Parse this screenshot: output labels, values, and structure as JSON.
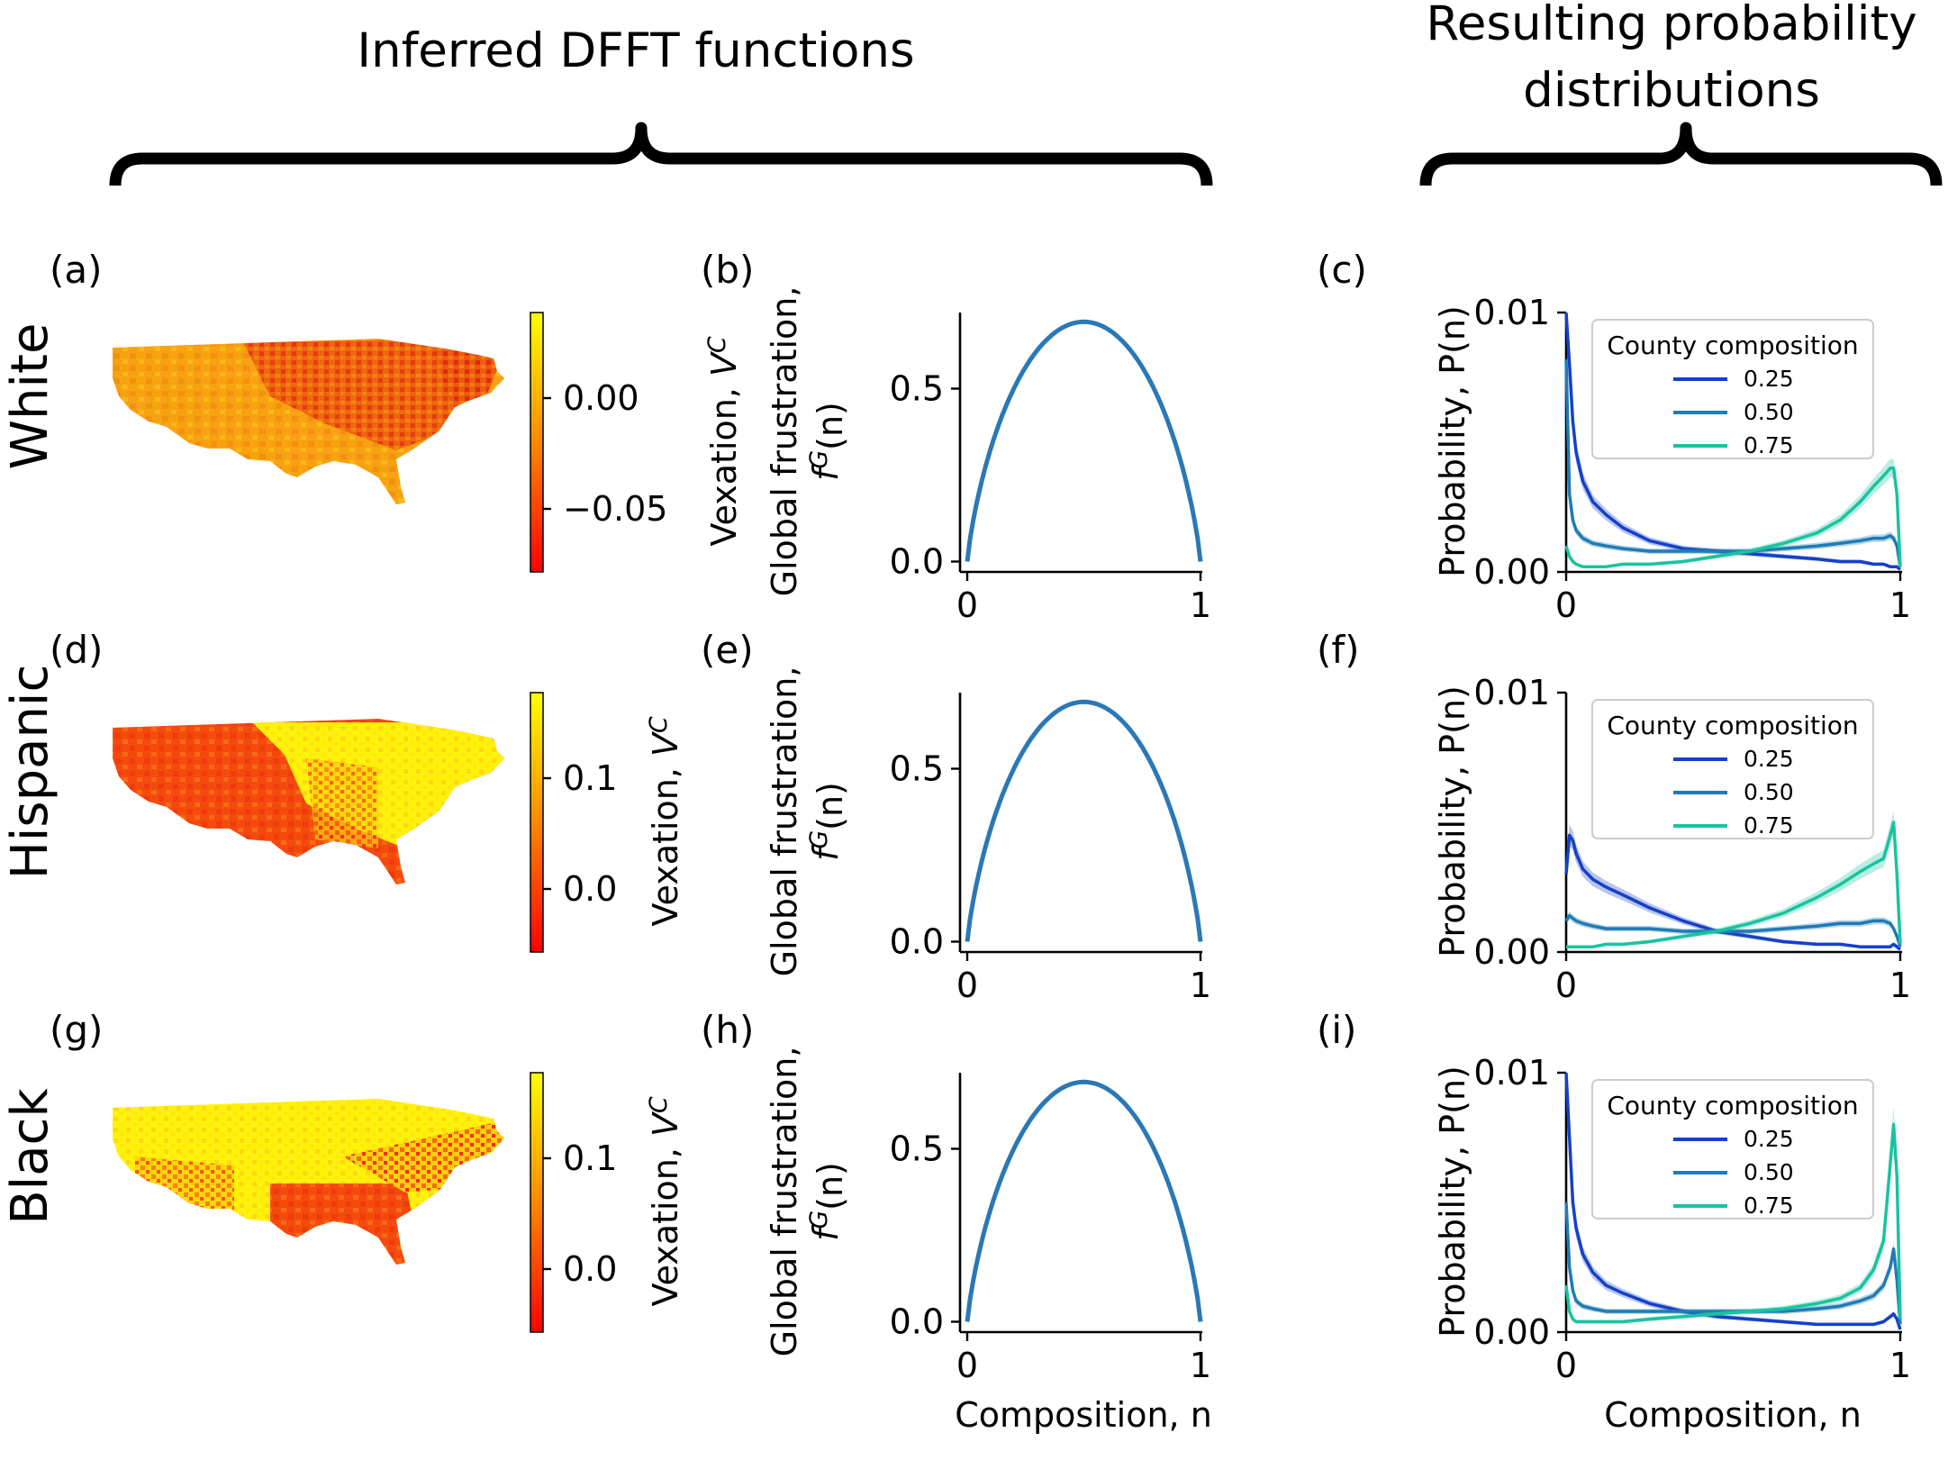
{
  "headers": {
    "left": "Inferred DFFT functions",
    "right_line1": "Resulting probability",
    "right_line2": "distributions"
  },
  "map_colormap": {
    "low": "#ff0000",
    "mid": "#ff8800",
    "high": "#ffff00"
  },
  "series_colors": {
    "0.25": "#1540c8",
    "0.50": "#1f7bb5",
    "0.75": "#19c3a0"
  },
  "curve_color": "#2a78b6",
  "rows": [
    {
      "group": "White",
      "map_label": "(a)",
      "curve_label": "(b)",
      "prob_label": "(c)",
      "colorbar": {
        "ticks": [
          "0.00",
          "−0.05"
        ],
        "label": ""
      },
      "map_tone": "white",
      "curve": {
        "ylabel_line1": "Global frustration,",
        "ylabel_line2": "f^G(n)",
        "yticks": [
          "0.0",
          "0.5"
        ],
        "xticks": [
          "0",
          "1"
        ],
        "xlabel": ""
      },
      "prob": {
        "ylabel": "Probability, P(n)",
        "yticks": [
          "0.00",
          "0.01"
        ],
        "xticks": [
          "0",
          "1"
        ],
        "xlabel": "",
        "legend_title": "County composition"
      },
      "left_axis_label": "Vexation, V^C"
    },
    {
      "group": "Hispanic",
      "map_label": "(d)",
      "curve_label": "(e)",
      "prob_label": "(f)",
      "colorbar": {
        "ticks": [
          "0.1",
          "0.0"
        ],
        "label": "Vexation, V^C"
      },
      "map_tone": "hispanic",
      "curve": {
        "ylabel_line1": "Global frustration,",
        "ylabel_line2": "f^G(n)",
        "yticks": [
          "0.0",
          "0.5"
        ],
        "xticks": [
          "0",
          "1"
        ],
        "xlabel": ""
      },
      "prob": {
        "ylabel": "Probability, P(n)",
        "yticks": [
          "0.00",
          "0.01"
        ],
        "xticks": [
          "0",
          "1"
        ],
        "xlabel": "",
        "legend_title": "County composition"
      },
      "left_axis_label": ""
    },
    {
      "group": "Black",
      "map_label": "(g)",
      "curve_label": "(h)",
      "prob_label": "(i)",
      "colorbar": {
        "ticks": [
          "0.1",
          "0.0"
        ],
        "label": "Vexation, V^C"
      },
      "map_tone": "black",
      "curve": {
        "ylabel_line1": "Global frustration,",
        "ylabel_line2": "f^G(n)",
        "yticks": [
          "0.0",
          "0.5"
        ],
        "xticks": [
          "0",
          "1"
        ],
        "xlabel": "Composition, n"
      },
      "prob": {
        "ylabel": "Probability, P(n)",
        "yticks": [
          "0.00",
          "0.01"
        ],
        "xticks": [
          "0",
          "1"
        ],
        "xlabel": "Composition, n",
        "legend_title": "County composition"
      },
      "left_axis_label": ""
    }
  ],
  "chart_data": [
    {
      "type": "line",
      "panels": [
        "(b)",
        "(e)",
        "(h)"
      ],
      "title": "",
      "xlabel": "Composition, n",
      "ylabel": "Global frustration, f^G(n)",
      "xlim": [
        0,
        1
      ],
      "ylim": [
        -0.03,
        0.72
      ],
      "series": [
        {
          "x": [
            0,
            0.05,
            0.1,
            0.15,
            0.2,
            0.25,
            0.3,
            0.35,
            0.4,
            0.45,
            0.5,
            0.55,
            0.6,
            0.65,
            0.7,
            0.75,
            0.8,
            0.85,
            0.9,
            0.95,
            1
          ],
          "values": [
            0,
            0.199,
            0.325,
            0.423,
            0.5,
            0.562,
            0.611,
            0.647,
            0.673,
            0.688,
            0.693,
            0.688,
            0.673,
            0.647,
            0.611,
            0.562,
            0.5,
            0.423,
            0.325,
            0.199,
            0
          ]
        }
      ]
    },
    {
      "type": "line",
      "panel": "(c)",
      "xlabel": "",
      "ylabel": "Probability, P(n)",
      "xlim": [
        0,
        1
      ],
      "ylim": [
        0,
        0.01
      ],
      "legend": "upper right",
      "legend_title": "County composition",
      "x": [
        0,
        0.01,
        0.02,
        0.03,
        0.05,
        0.08,
        0.12,
        0.17,
        0.25,
        0.35,
        0.45,
        0.55,
        0.65,
        0.75,
        0.82,
        0.88,
        0.92,
        0.95,
        0.97,
        0.98,
        0.99,
        1
      ],
      "series": [
        {
          "name": "0.25",
          "values": [
            0.01,
            0.008,
            0.0058,
            0.0046,
            0.0035,
            0.0027,
            0.0022,
            0.0017,
            0.0012,
            0.0009,
            0.0008,
            0.0007,
            0.0006,
            0.0005,
            0.0004,
            0.0004,
            0.0003,
            0.0003,
            0.0002,
            0.0002,
            0.0002,
            0.0001
          ]
        },
        {
          "name": "0.50",
          "values": [
            0.0082,
            0.003,
            0.002,
            0.0016,
            0.0013,
            0.0011,
            0.001,
            0.0009,
            0.0008,
            0.0008,
            0.0008,
            0.0008,
            0.0009,
            0.001,
            0.0011,
            0.0012,
            0.0013,
            0.0013,
            0.0014,
            0.0013,
            0.001,
            0.0002
          ]
        },
        {
          "name": "0.75",
          "values": [
            0.001,
            0.0006,
            0.0004,
            0.0003,
            0.0002,
            0.0002,
            0.0002,
            0.0003,
            0.0003,
            0.0004,
            0.0006,
            0.0008,
            0.0011,
            0.0015,
            0.002,
            0.0027,
            0.0033,
            0.0037,
            0.004,
            0.004,
            0.003,
            0.0002
          ]
        }
      ]
    },
    {
      "type": "line",
      "panel": "(f)",
      "xlabel": "",
      "ylabel": "Probability, P(n)",
      "xlim": [
        0,
        1
      ],
      "ylim": [
        0,
        0.01
      ],
      "legend": "upper right",
      "legend_title": "County composition",
      "x": [
        0,
        0.01,
        0.02,
        0.03,
        0.05,
        0.08,
        0.12,
        0.17,
        0.25,
        0.35,
        0.45,
        0.55,
        0.65,
        0.75,
        0.82,
        0.88,
        0.92,
        0.95,
        0.97,
        0.98,
        0.99,
        1
      ],
      "series": [
        {
          "name": "0.25",
          "values": [
            0.003,
            0.0045,
            0.0043,
            0.0038,
            0.0032,
            0.0028,
            0.0025,
            0.0022,
            0.0017,
            0.0012,
            0.0008,
            0.0006,
            0.0004,
            0.0003,
            0.0003,
            0.0002,
            0.0002,
            0.0002,
            0.0002,
            0.0003,
            0.0002,
            0.0001
          ]
        },
        {
          "name": "0.50",
          "values": [
            0.0012,
            0.0014,
            0.0013,
            0.0012,
            0.0011,
            0.001,
            0.0009,
            0.0009,
            0.0009,
            0.0008,
            0.0008,
            0.0008,
            0.0009,
            0.001,
            0.0011,
            0.0011,
            0.0012,
            0.0012,
            0.0011,
            0.0009,
            0.0006,
            0.0002
          ]
        },
        {
          "name": "0.75",
          "values": [
            0.0002,
            0.0002,
            0.0002,
            0.0002,
            0.0002,
            0.0002,
            0.0003,
            0.0003,
            0.0004,
            0.0006,
            0.0008,
            0.0011,
            0.0015,
            0.0021,
            0.0026,
            0.0031,
            0.0034,
            0.0036,
            0.0045,
            0.005,
            0.003,
            0.0003
          ]
        }
      ]
    },
    {
      "type": "line",
      "panel": "(i)",
      "xlabel": "Composition, n",
      "ylabel": "Probability, P(n)",
      "xlim": [
        0,
        1
      ],
      "ylim": [
        0,
        0.01
      ],
      "legend": "upper right",
      "legend_title": "County composition",
      "x": [
        0,
        0.01,
        0.02,
        0.03,
        0.05,
        0.08,
        0.12,
        0.17,
        0.25,
        0.35,
        0.45,
        0.55,
        0.65,
        0.75,
        0.82,
        0.88,
        0.92,
        0.95,
        0.97,
        0.98,
        0.99,
        1
      ],
      "series": [
        {
          "name": "0.25",
          "values": [
            0.01,
            0.0075,
            0.005,
            0.004,
            0.003,
            0.0023,
            0.0018,
            0.0015,
            0.0011,
            0.0008,
            0.0006,
            0.0005,
            0.0004,
            0.0003,
            0.0003,
            0.0003,
            0.0003,
            0.0004,
            0.0006,
            0.0007,
            0.0005,
            0.0001
          ]
        },
        {
          "name": "0.50",
          "values": [
            0.005,
            0.0025,
            0.0016,
            0.0012,
            0.001,
            0.0009,
            0.0008,
            0.0008,
            0.0008,
            0.0008,
            0.0008,
            0.0008,
            0.0008,
            0.0009,
            0.001,
            0.0012,
            0.0014,
            0.0018,
            0.0025,
            0.0032,
            0.002,
            0.0003
          ]
        },
        {
          "name": "0.75",
          "values": [
            0.0018,
            0.0008,
            0.0005,
            0.0004,
            0.0004,
            0.0004,
            0.0004,
            0.0004,
            0.0005,
            0.0006,
            0.0007,
            0.0008,
            0.0009,
            0.0011,
            0.0013,
            0.0017,
            0.0024,
            0.0035,
            0.0065,
            0.008,
            0.006,
            0.0005
          ]
        }
      ]
    }
  ]
}
